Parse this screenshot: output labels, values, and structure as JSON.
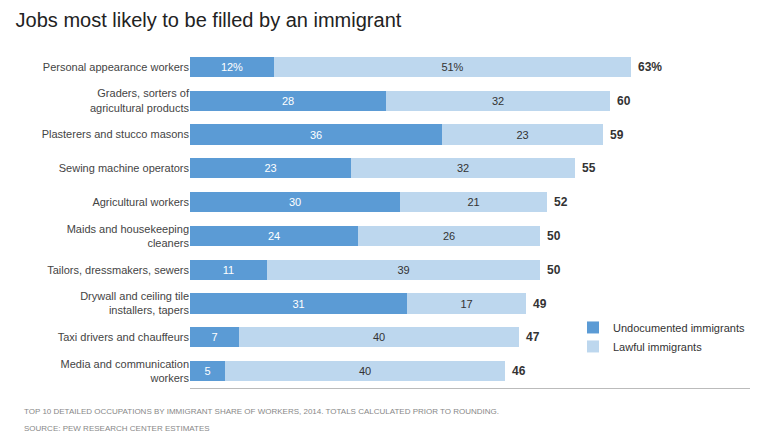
{
  "chart_data": {
    "type": "bar",
    "orientation": "horizontal",
    "stacked": true,
    "title": "Jobs most likely to be filled by an immigrant",
    "categories": [
      "Media and communication\nworkers",
      "Taxi drivers and chauffeurs",
      "Drywall and ceiling tile\ninstallers, tapers",
      "Tailors, dressmakers, sewers",
      "Maids and housekeeping\ncleaners",
      "Agricultural workers",
      "Sewing machine operators",
      "Plasterers and stucco masons",
      "Graders, sorters of\nagricultural products",
      "Personal appearance workers"
    ],
    "series": [
      {
        "name": "Undocumented immigrants",
        "color": "#5b9bd5",
        "values": [
          5,
          7,
          31,
          11,
          24,
          30,
          23,
          36,
          28,
          12
        ],
        "value_labels": [
          "5",
          "7",
          "31",
          "11",
          "24",
          "30",
          "23",
          "36",
          "28",
          "12%"
        ]
      },
      {
        "name": "Lawful immigrants",
        "color": "#bdd7ee",
        "values": [
          40,
          40,
          17,
          39,
          26,
          21,
          32,
          23,
          32,
          51
        ],
        "value_labels": [
          "40",
          "40",
          "17",
          "39",
          "26",
          "21",
          "32",
          "23",
          "32",
          "51%"
        ]
      }
    ],
    "totals": [
      46,
      47,
      49,
      50,
      50,
      52,
      55,
      59,
      60,
      63
    ],
    "total_labels": [
      "46",
      "47",
      "49",
      "50",
      "50",
      "52",
      "55",
      "59",
      "60",
      "63%"
    ],
    "xlim": [
      0,
      80
    ],
    "data_labels": true,
    "tick_labels": "y",
    "grid": false,
    "legend": "lower right",
    "footnotes": [
      "TOP 10 DETAILED OCCUPATIONS BY IMMIGRANT SHARE OF WORKERS, 2014. TOTALS CALCULATED PRIOR TO ROUNDING.",
      "SOURCE: PEW RESEARCH CENTER ESTIMATES"
    ]
  }
}
